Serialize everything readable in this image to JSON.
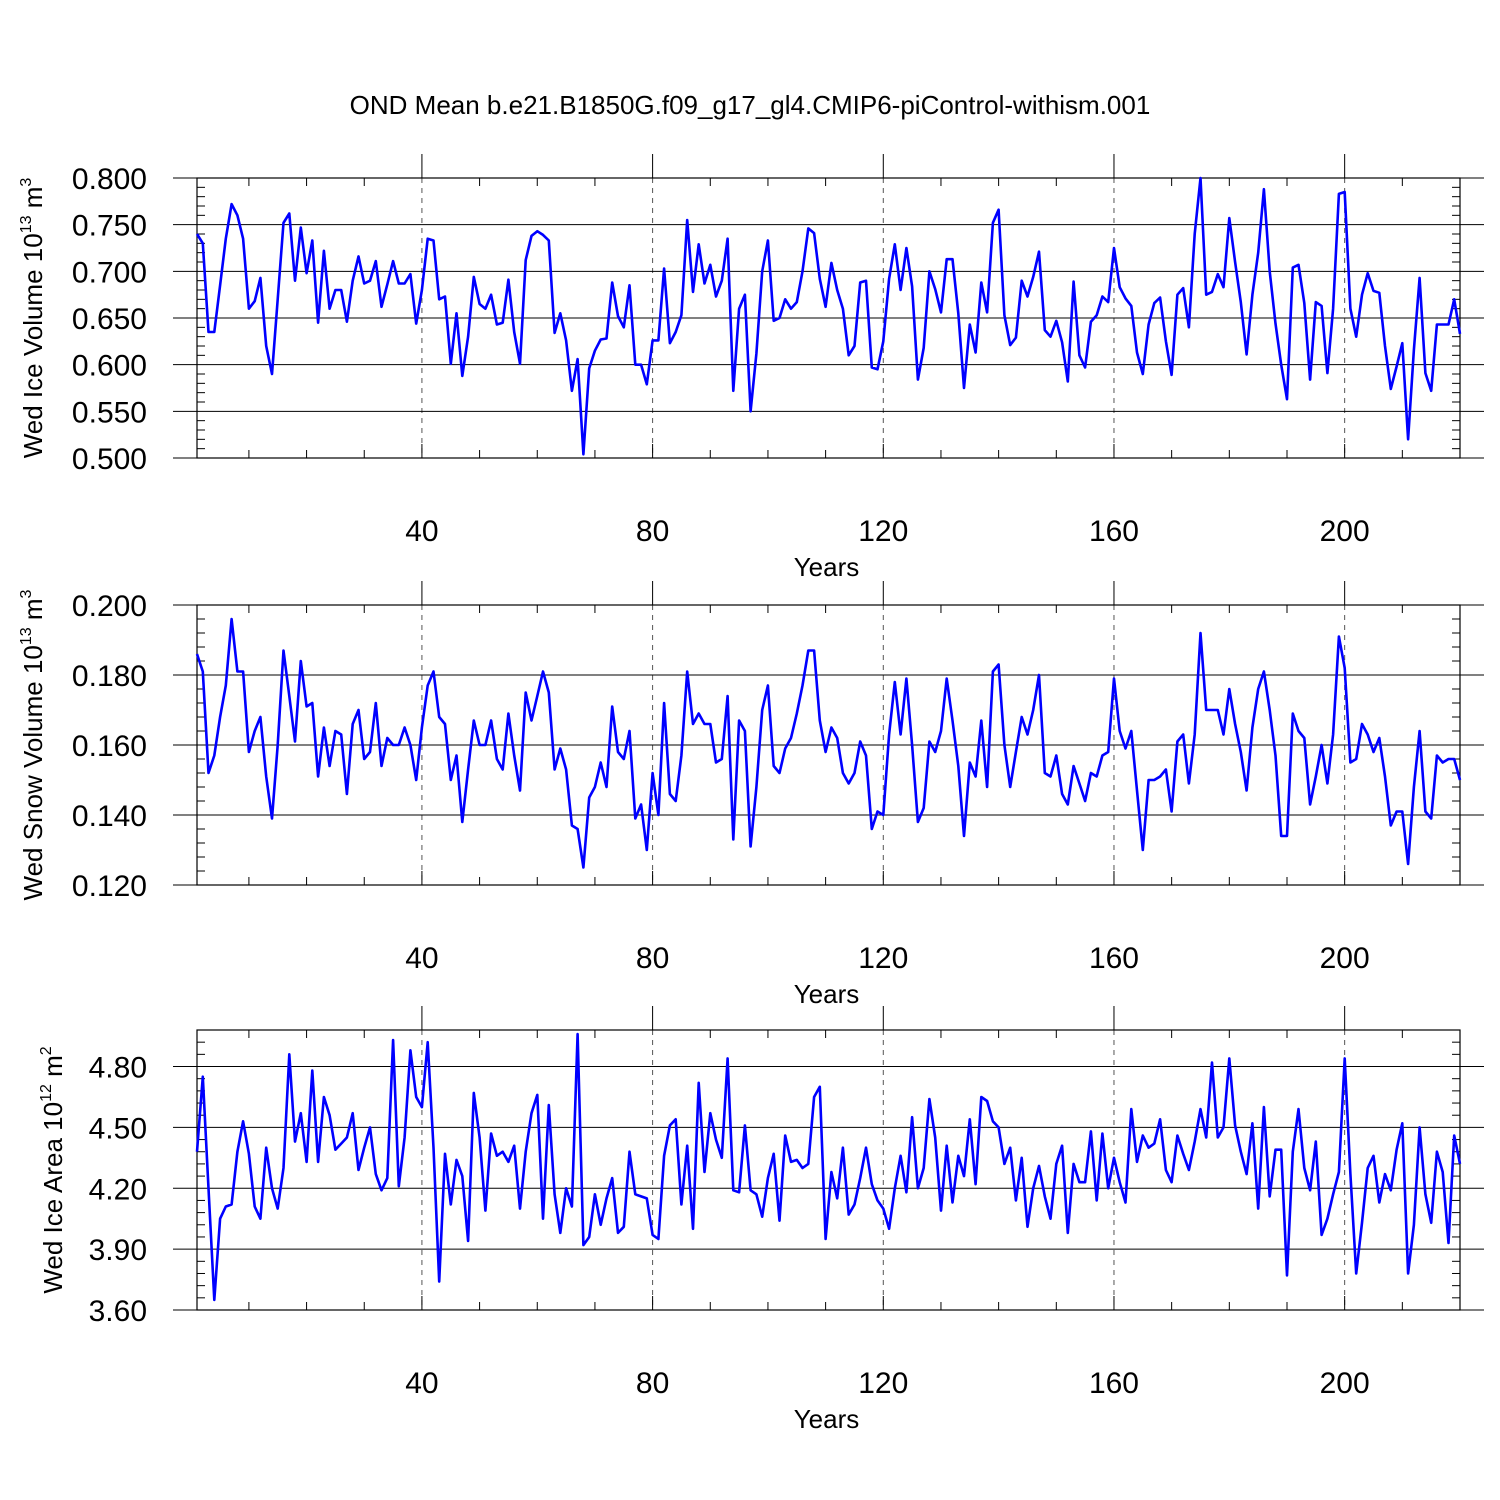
{
  "title": "OND Mean b.e21.B1850G.f09_g17_gl4.CMIP6-piControl-withism.001",
  "series_color": "#0000ff",
  "chart_data": [
    {
      "type": "line",
      "ylabel": {
        "main": "Wed Ice Volume 10",
        "sup1": "13",
        "mid": " m",
        "sup2": "3"
      },
      "xlabel": "Years",
      "xlim": [
        1,
        220
      ],
      "ylim": [
        0.5,
        0.8
      ],
      "xticks": [
        40,
        80,
        120,
        160,
        200
      ],
      "xtick_labels": [
        "40",
        "80",
        "120",
        "160",
        "200"
      ],
      "yticks": [
        0.5,
        0.55,
        0.6,
        0.65,
        0.7,
        0.75,
        0.8
      ],
      "ytick_labels": [
        "0.500",
        "0.550",
        "0.600",
        "0.650",
        "0.700",
        "0.750",
        "0.800"
      ],
      "grid": "vertical dashed at major x ticks",
      "values": [
        0.74,
        0.73,
        0.635,
        0.635,
        0.685,
        0.735,
        0.772,
        0.76,
        0.735,
        0.66,
        0.668,
        0.693,
        0.62,
        0.59,
        0.67,
        0.752,
        0.762,
        0.69,
        0.747,
        0.698,
        0.733,
        0.645,
        0.722,
        0.66,
        0.68,
        0.68,
        0.646,
        0.69,
        0.716,
        0.687,
        0.69,
        0.711,
        0.662,
        0.686,
        0.711,
        0.687,
        0.687,
        0.697,
        0.644,
        0.68,
        0.735,
        0.733,
        0.67,
        0.673,
        0.601,
        0.655,
        0.588,
        0.63,
        0.694,
        0.665,
        0.66,
        0.675,
        0.643,
        0.645,
        0.691,
        0.635,
        0.601,
        0.712,
        0.738,
        0.743,
        0.739,
        0.733,
        0.634,
        0.655,
        0.626,
        0.572,
        0.606,
        0.504,
        0.596,
        0.615,
        0.627,
        0.628,
        0.688,
        0.652,
        0.64,
        0.685,
        0.6,
        0.6,
        0.579,
        0.626,
        0.626,
        0.703,
        0.623,
        0.635,
        0.653,
        0.755,
        0.678,
        0.729,
        0.687,
        0.707,
        0.673,
        0.69,
        0.735,
        0.572,
        0.66,
        0.675,
        0.55,
        0.612,
        0.7,
        0.733,
        0.647,
        0.65,
        0.67,
        0.66,
        0.667,
        0.7,
        0.746,
        0.741,
        0.692,
        0.662,
        0.709,
        0.68,
        0.66,
        0.61,
        0.62,
        0.688,
        0.69,
        0.597,
        0.595,
        0.625,
        0.692,
        0.729,
        0.68,
        0.725,
        0.684,
        0.584,
        0.618,
        0.7,
        0.681,
        0.656,
        0.713,
        0.713,
        0.655,
        0.575,
        0.643,
        0.613,
        0.688,
        0.656,
        0.752,
        0.766,
        0.653,
        0.621,
        0.629,
        0.69,
        0.673,
        0.694,
        0.721,
        0.637,
        0.63,
        0.647,
        0.624,
        0.582,
        0.689,
        0.61,
        0.597,
        0.646,
        0.653,
        0.673,
        0.667,
        0.725,
        0.683,
        0.671,
        0.663,
        0.613,
        0.59,
        0.643,
        0.666,
        0.672,
        0.625,
        0.589,
        0.675,
        0.682,
        0.64,
        0.74,
        0.8,
        0.675,
        0.678,
        0.697,
        0.683,
        0.757,
        0.71,
        0.667,
        0.611,
        0.675,
        0.72,
        0.788,
        0.7,
        0.644,
        0.6,
        0.563,
        0.704,
        0.707,
        0.666,
        0.584,
        0.667,
        0.663,
        0.591,
        0.66,
        0.783,
        0.785,
        0.66,
        0.63,
        0.675,
        0.698,
        0.679,
        0.677,
        0.62,
        0.574,
        0.598,
        0.623,
        0.52,
        0.616,
        0.693,
        0.591,
        0.572,
        0.643,
        0.643,
        0.643,
        0.67,
        0.633
      ]
    },
    {
      "type": "line",
      "ylabel": {
        "main": "Wed Snow Volume 10",
        "sup1": "13",
        "mid": " m",
        "sup2": "3"
      },
      "xlabel": "Years",
      "xlim": [
        1,
        220
      ],
      "ylim": [
        0.12,
        0.2
      ],
      "xticks": [
        40,
        80,
        120,
        160,
        200
      ],
      "xtick_labels": [
        "40",
        "80",
        "120",
        "160",
        "200"
      ],
      "yticks": [
        0.12,
        0.14,
        0.16,
        0.18,
        0.2
      ],
      "ytick_labels": [
        "0.120",
        "0.140",
        "0.160",
        "0.180",
        "0.200"
      ],
      "grid": "vertical dashed at major x ticks",
      "values": [
        0.186,
        0.181,
        0.152,
        0.157,
        0.168,
        0.177,
        0.196,
        0.181,
        0.181,
        0.158,
        0.164,
        0.168,
        0.151,
        0.139,
        0.16,
        0.187,
        0.174,
        0.161,
        0.184,
        0.171,
        0.172,
        0.151,
        0.165,
        0.154,
        0.164,
        0.163,
        0.146,
        0.166,
        0.17,
        0.156,
        0.158,
        0.172,
        0.154,
        0.162,
        0.16,
        0.16,
        0.165,
        0.16,
        0.15,
        0.165,
        0.177,
        0.181,
        0.168,
        0.166,
        0.15,
        0.157,
        0.138,
        0.153,
        0.167,
        0.16,
        0.16,
        0.167,
        0.156,
        0.153,
        0.169,
        0.157,
        0.147,
        0.175,
        0.167,
        0.174,
        0.181,
        0.175,
        0.153,
        0.159,
        0.153,
        0.137,
        0.136,
        0.125,
        0.145,
        0.148,
        0.155,
        0.148,
        0.171,
        0.158,
        0.156,
        0.164,
        0.139,
        0.143,
        0.13,
        0.152,
        0.14,
        0.172,
        0.146,
        0.144,
        0.157,
        0.181,
        0.166,
        0.169,
        0.166,
        0.166,
        0.155,
        0.156,
        0.174,
        0.133,
        0.167,
        0.164,
        0.131,
        0.148,
        0.17,
        0.177,
        0.154,
        0.152,
        0.159,
        0.162,
        0.169,
        0.177,
        0.187,
        0.187,
        0.167,
        0.158,
        0.165,
        0.162,
        0.152,
        0.149,
        0.152,
        0.161,
        0.157,
        0.136,
        0.141,
        0.14,
        0.163,
        0.178,
        0.163,
        0.179,
        0.16,
        0.138,
        0.142,
        0.161,
        0.158,
        0.164,
        0.179,
        0.167,
        0.154,
        0.134,
        0.155,
        0.151,
        0.167,
        0.148,
        0.181,
        0.183,
        0.16,
        0.148,
        0.158,
        0.168,
        0.163,
        0.17,
        0.18,
        0.152,
        0.151,
        0.157,
        0.146,
        0.143,
        0.154,
        0.149,
        0.144,
        0.152,
        0.151,
        0.157,
        0.158,
        0.179,
        0.164,
        0.159,
        0.164,
        0.147,
        0.13,
        0.15,
        0.15,
        0.151,
        0.153,
        0.141,
        0.161,
        0.163,
        0.149,
        0.163,
        0.192,
        0.17,
        0.17,
        0.17,
        0.163,
        0.176,
        0.166,
        0.158,
        0.147,
        0.165,
        0.176,
        0.181,
        0.17,
        0.157,
        0.134,
        0.134,
        0.169,
        0.164,
        0.162,
        0.143,
        0.151,
        0.16,
        0.149,
        0.163,
        0.191,
        0.182,
        0.155,
        0.156,
        0.166,
        0.163,
        0.158,
        0.162,
        0.151,
        0.137,
        0.141,
        0.141,
        0.126,
        0.148,
        0.164,
        0.141,
        0.139,
        0.157,
        0.155,
        0.156,
        0.156,
        0.15
      ]
    },
    {
      "type": "line",
      "ylabel": {
        "main": "Wed Ice Area 10",
        "sup1": "12",
        "mid": " m",
        "sup2": "2"
      },
      "xlabel": "Years",
      "xlim": [
        1,
        220
      ],
      "ylim": [
        3.6,
        4.98
      ],
      "xticks": [
        40,
        80,
        120,
        160,
        200
      ],
      "xtick_labels": [
        "40",
        "80",
        "120",
        "160",
        "200"
      ],
      "yticks": [
        3.6,
        3.9,
        4.2,
        4.5,
        4.8
      ],
      "ytick_labels": [
        "3.60",
        "3.90",
        "4.20",
        "4.50",
        "4.80"
      ],
      "grid": "vertical dashed at major x ticks",
      "values": [
        4.38,
        4.75,
        4.2,
        3.65,
        4.05,
        4.11,
        4.12,
        4.38,
        4.53,
        4.37,
        4.11,
        4.05,
        4.4,
        4.2,
        4.1,
        4.3,
        4.86,
        4.43,
        4.57,
        4.33,
        4.78,
        4.33,
        4.65,
        4.56,
        4.39,
        4.42,
        4.45,
        4.57,
        4.29,
        4.4,
        4.5,
        4.27,
        4.19,
        4.25,
        4.93,
        4.21,
        4.45,
        4.88,
        4.65,
        4.6,
        4.92,
        4.4,
        3.74,
        4.37,
        4.12,
        4.34,
        4.26,
        3.94,
        4.67,
        4.45,
        4.09,
        4.47,
        4.36,
        4.38,
        4.33,
        4.41,
        4.1,
        4.38,
        4.57,
        4.66,
        4.05,
        4.61,
        4.17,
        3.98,
        4.2,
        4.11,
        4.96,
        3.92,
        3.96,
        4.17,
        4.02,
        4.15,
        4.25,
        3.98,
        4.01,
        4.38,
        4.17,
        4.16,
        4.15,
        3.97,
        3.95,
        4.36,
        4.51,
        4.54,
        4.12,
        4.41,
        4.0,
        4.72,
        4.28,
        4.57,
        4.44,
        4.35,
        4.84,
        4.19,
        4.18,
        4.51,
        4.19,
        4.17,
        4.06,
        4.25,
        4.37,
        4.04,
        4.46,
        4.33,
        4.34,
        4.3,
        4.32,
        4.65,
        4.7,
        3.95,
        4.28,
        4.15,
        4.4,
        4.07,
        4.12,
        4.25,
        4.4,
        4.22,
        4.14,
        4.1,
        4.0,
        4.2,
        4.36,
        4.18,
        4.55,
        4.2,
        4.3,
        4.64,
        4.45,
        4.09,
        4.41,
        4.13,
        4.36,
        4.26,
        4.54,
        4.22,
        4.65,
        4.63,
        4.53,
        4.5,
        4.32,
        4.4,
        4.14,
        4.35,
        4.01,
        4.2,
        4.31,
        4.16,
        4.05,
        4.32,
        4.41,
        3.98,
        4.32,
        4.23,
        4.23,
        4.48,
        4.14,
        4.47,
        4.2,
        4.35,
        4.23,
        4.13,
        4.59,
        4.33,
        4.46,
        4.4,
        4.42,
        4.54,
        4.29,
        4.23,
        4.46,
        4.37,
        4.29,
        4.43,
        4.59,
        4.45,
        4.82,
        4.45,
        4.5,
        4.84,
        4.51,
        4.38,
        4.27,
        4.52,
        4.1,
        4.6,
        4.16,
        4.39,
        4.39,
        3.77,
        4.38,
        4.59,
        4.3,
        4.19,
        4.43,
        3.97,
        4.05,
        4.17,
        4.28,
        4.84,
        4.27,
        3.78,
        4.03,
        4.3,
        4.36,
        4.13,
        4.27,
        4.19,
        4.39,
        4.52,
        3.78,
        4.02,
        4.5,
        4.17,
        4.03,
        4.38,
        4.28,
        3.93,
        4.46,
        4.32
      ]
    }
  ]
}
